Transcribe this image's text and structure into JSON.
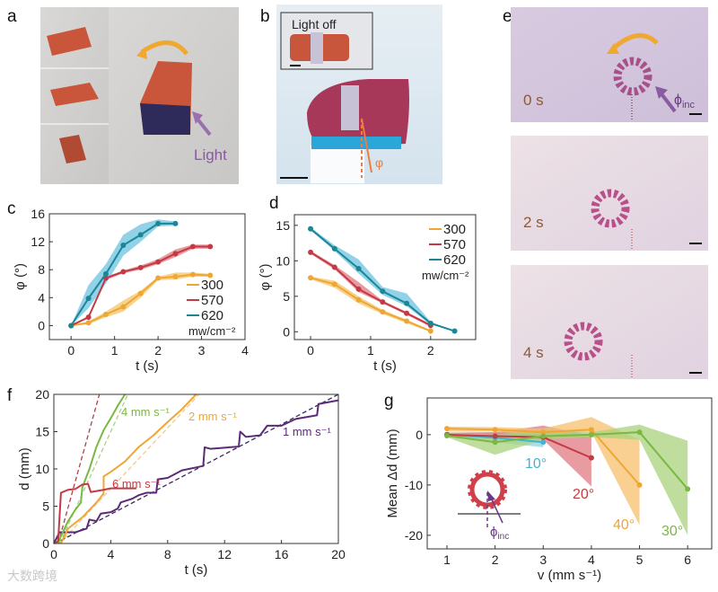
{
  "panels": {
    "a": {
      "label": "a",
      "light_text": "Light"
    },
    "b": {
      "label": "b",
      "inset_text": "Light off",
      "angle_symbol": "φ"
    },
    "e": {
      "label": "e",
      "frames": [
        "0 s",
        "2 s",
        "4 s"
      ],
      "incidence_symbol": "ϕ",
      "incidence_sub": "inc"
    },
    "c": {
      "label": "c"
    },
    "d": {
      "label": "d"
    },
    "f": {
      "label": "f"
    },
    "g": {
      "label": "g",
      "inset_symbol": "ϕ",
      "inset_sub": "inc"
    }
  },
  "watermark": "大数跨境",
  "chart_data": [
    {
      "panel": "c",
      "type": "line",
      "xlabel": "t (s)",
      "ylabel": "φ (°)",
      "xlim": [
        -0.5,
        4
      ],
      "ylim": [
        -2,
        16
      ],
      "xticks": [
        0,
        1,
        2,
        3,
        4
      ],
      "yticks": [
        0,
        4,
        8,
        12,
        16
      ],
      "legend": {
        "placement": "bottom-right",
        "unit": "mw/cm⁻²"
      },
      "series": [
        {
          "name": "300",
          "color": "#eea733",
          "band": "#f5c468",
          "x": [
            0,
            0.4,
            0.8,
            1.2,
            1.6,
            2.0,
            2.4,
            2.8,
            3.2
          ],
          "y": [
            0,
            0.4,
            1.6,
            2.7,
            4.6,
            6.8,
            7.0,
            7.3,
            7.2
          ],
          "lo": [
            0,
            0.2,
            1.2,
            2.0,
            4.0,
            6.5,
            6.6,
            7.0,
            7.0
          ],
          "hi": [
            0,
            0.6,
            2.0,
            3.6,
            5.0,
            7.0,
            7.6,
            7.6,
            7.4
          ]
        },
        {
          "name": "570",
          "color": "#c43a44",
          "band": "#e07a80",
          "x": [
            0,
            0.4,
            0.8,
            1.2,
            1.6,
            2.0,
            2.4,
            2.8,
            3.2
          ],
          "y": [
            0,
            1.2,
            6.8,
            7.7,
            8.3,
            9.1,
            10.3,
            11.3,
            11.3
          ],
          "lo": [
            0,
            1.0,
            6.5,
            7.5,
            8.0,
            8.8,
            9.8,
            11.0,
            11.0
          ],
          "hi": [
            0,
            1.4,
            7.0,
            7.9,
            8.6,
            9.5,
            10.9,
            11.6,
            11.6
          ]
        },
        {
          "name": "620",
          "color": "#1b8796",
          "band": "#6cc3e2",
          "x": [
            0,
            0.4,
            0.8,
            1.2,
            1.6,
            2.0,
            2.4
          ],
          "y": [
            0,
            3.9,
            7.4,
            11.5,
            13.0,
            14.6,
            14.6
          ],
          "lo": [
            0,
            2.5,
            6.0,
            10.0,
            12.0,
            14.2,
            14.3
          ],
          "hi": [
            0,
            5.8,
            8.8,
            13.0,
            14.5,
            15.2,
            14.9
          ]
        }
      ]
    },
    {
      "panel": "d",
      "type": "line",
      "xlabel": "t (s)",
      "ylabel": "φ (°)",
      "xlim": [
        -0.27,
        2.75
      ],
      "ylim": [
        -1.1,
        16.5
      ],
      "xticks": [
        0,
        1,
        2
      ],
      "yticks": [
        0,
        5,
        10,
        15
      ],
      "legend": {
        "placement": "top-right",
        "unit": "mw/cm⁻²"
      },
      "series": [
        {
          "name": "300",
          "color": "#eea733",
          "band": "#f5c468",
          "x": [
            0,
            0.4,
            0.8,
            1.2,
            1.6,
            2.0
          ],
          "y": [
            7.6,
            6.7,
            4.5,
            2.8,
            1.5,
            0.1
          ],
          "lo": [
            7.4,
            6.2,
            4.0,
            2.5,
            1.2,
            0.0
          ],
          "hi": [
            7.8,
            7.2,
            5.0,
            3.1,
            1.7,
            0.2
          ]
        },
        {
          "name": "570",
          "color": "#c43a44",
          "band": "#e07a80",
          "x": [
            0,
            0.4,
            0.8,
            1.2,
            1.6,
            2.0
          ],
          "y": [
            11.2,
            9.1,
            6.0,
            4.2,
            2.6,
            0.9
          ],
          "lo": [
            11.0,
            8.8,
            5.6,
            4.0,
            2.4,
            0.7
          ],
          "hi": [
            11.4,
            9.4,
            7.0,
            4.4,
            2.8,
            1.1
          ]
        },
        {
          "name": "620",
          "color": "#1b8796",
          "band": "#6cc3e2",
          "x": [
            0,
            0.4,
            0.8,
            1.2,
            1.6,
            2.0,
            2.4
          ],
          "y": [
            14.5,
            11.7,
            8.9,
            5.7,
            4.0,
            1.2,
            0.1
          ],
          "lo": [
            14.3,
            11.4,
            8.2,
            5.2,
            3.6,
            1.0,
            0.1
          ],
          "hi": [
            14.7,
            12.2,
            10.2,
            6.3,
            5.4,
            1.4,
            0.1
          ]
        }
      ]
    },
    {
      "panel": "f",
      "type": "line",
      "xlabel": "t (s)",
      "ylabel": "d (mm)",
      "xlim": [
        0,
        20
      ],
      "ylim": [
        0,
        20
      ],
      "xticks": [
        0,
        4,
        8,
        12,
        16,
        20
      ],
      "yticks": [
        0,
        5,
        10,
        15,
        20
      ],
      "series": [
        {
          "name": "6 mm s⁻¹ reference",
          "color": "#b0404a",
          "dash": true,
          "x": [
            0.3,
            3.2
          ],
          "y": [
            0,
            20
          ]
        },
        {
          "name": "4 mm s⁻¹ reference",
          "color": "#a9d08a",
          "dash": true,
          "x": [
            0.4,
            5.2
          ],
          "y": [
            0,
            20
          ]
        },
        {
          "name": "2 mm s⁻¹ reference",
          "color": "#f3c98a",
          "dash": true,
          "x": [
            0.4,
            10.2
          ],
          "y": [
            0,
            20
          ]
        },
        {
          "name": "1 mm s⁻¹ reference",
          "color": "#3a2a5e",
          "dash": true,
          "x": [
            0.5,
            20
          ],
          "y": [
            0.4,
            20
          ]
        },
        {
          "name": "1 mm s⁻¹",
          "label": "1 mm s⁻¹",
          "color": "#5b2a78",
          "x": [
            0,
            0.4,
            1.5,
            2.3,
            2.5,
            3,
            3.3,
            4,
            4.5,
            4.7,
            5.5,
            6,
            6.5,
            7.2,
            7.3,
            8,
            9,
            10.5,
            10.6,
            11,
            13,
            13.1,
            13.5,
            14.5,
            15,
            16,
            17,
            18.5,
            18.6,
            20
          ],
          "y": [
            0,
            1.5,
            1.5,
            2,
            3.2,
            3,
            4,
            4.2,
            4.7,
            5.5,
            6,
            6.5,
            6.8,
            6.8,
            8.6,
            8.8,
            9.8,
            10.4,
            12.9,
            12.7,
            13,
            15,
            14.3,
            14.5,
            15.8,
            15.8,
            16.7,
            17.2,
            18.7,
            19.2
          ]
        },
        {
          "name": "2 mm s⁻¹",
          "label": "2 mm s⁻¹",
          "color": "#eea733",
          "x": [
            0.5,
            1,
            2,
            3,
            3.5,
            3.5,
            4,
            5,
            6,
            7,
            8,
            9,
            10
          ],
          "y": [
            0,
            2,
            3.5,
            5.5,
            6.7,
            9,
            9.6,
            11,
            13,
            14.5,
            16.3,
            18,
            20
          ]
        },
        {
          "name": "4 mm s⁻¹",
          "label": "4 mm s⁻¹",
          "color": "#7ab842",
          "x": [
            0.3,
            0.5,
            1,
            1.5,
            1.9,
            2,
            2.5,
            3,
            3.5,
            4,
            4.5,
            5
          ],
          "y": [
            0,
            1,
            3,
            4.5,
            5.5,
            7.5,
            10,
            13,
            15.2,
            16.8,
            18.5,
            20
          ]
        },
        {
          "name": "6 mm s⁻¹",
          "label": "6 mm s⁻¹",
          "color": "#c43a44",
          "x": [
            0,
            0.3,
            0.5,
            1,
            1.5,
            2,
            2.4,
            2.6,
            3.5,
            4,
            5.8
          ],
          "y": [
            0,
            0.3,
            6.8,
            7.2,
            7.3,
            7.9,
            8,
            6.9,
            7.2,
            7.4,
            7.4
          ]
        }
      ]
    },
    {
      "panel": "g",
      "type": "line",
      "xlabel": "v (mm s⁻¹)",
      "ylabel": "Mean Δd (mm)",
      "xlim": [
        0.59,
        6.5
      ],
      "ylim": [
        -22.7,
        7.3
      ],
      "xticks": [
        1,
        2,
        3,
        4,
        5,
        6
      ],
      "yticks": [
        -20,
        -10,
        0
      ],
      "series": [
        {
          "name": "10°",
          "label": "10°",
          "color": "#47b2cf",
          "band": "#8fd3e6",
          "x": [
            1,
            2,
            3
          ],
          "y": [
            0,
            -0.6,
            -1.5
          ],
          "lo": [
            -0.5,
            -1.5,
            -2.5
          ],
          "hi": [
            0.5,
            0.5,
            0
          ]
        },
        {
          "name": "20°",
          "label": "20°",
          "color": "#c43a44",
          "band": "#e07a80",
          "x": [
            1,
            2,
            3,
            4
          ],
          "y": [
            0,
            -0.3,
            -0.5,
            -4.6
          ],
          "lo": [
            -0.3,
            -0.8,
            -1,
            -10.3
          ],
          "hi": [
            0.3,
            0.5,
            1.8,
            -0.2
          ]
        },
        {
          "name": "40°",
          "label": "40°",
          "color": "#eea733",
          "band": "#f7bf6e",
          "x": [
            1,
            2,
            3,
            4,
            5
          ],
          "y": [
            1.2,
            1.0,
            0.5,
            1.0,
            -10
          ],
          "lo": [
            0.6,
            0.6,
            0,
            0.5,
            -18
          ],
          "hi": [
            1.6,
            1.5,
            1.2,
            3.5,
            -1
          ]
        },
        {
          "name": "30°",
          "label": "30°",
          "color": "#7ab842",
          "band": "#a9d37c",
          "x": [
            1,
            2,
            3,
            4,
            5,
            6
          ],
          "y": [
            -0.2,
            -1.5,
            -0.3,
            0,
            0.5,
            -10.8
          ],
          "lo": [
            -0.5,
            -4,
            -1,
            -0.5,
            -1,
            -20
          ],
          "hi": [
            0.3,
            0,
            1,
            0.5,
            2,
            -1.2
          ]
        }
      ]
    }
  ]
}
